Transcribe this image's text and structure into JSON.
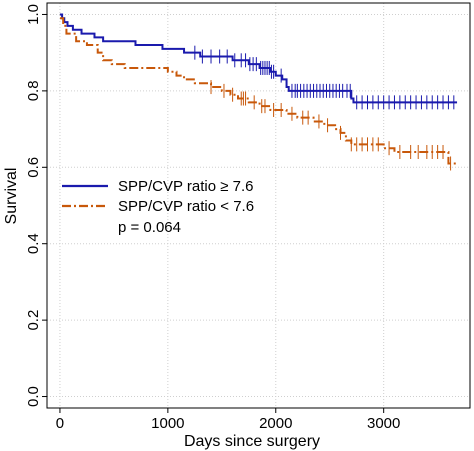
{
  "chart_data": {
    "type": "line",
    "title": "",
    "xlabel": "Days since surgery",
    "ylabel": "Survival",
    "xlim": [
      -120,
      3800
    ],
    "ylim": [
      -0.03,
      1.03
    ],
    "x_ticks": [
      0,
      1000,
      2000,
      3000
    ],
    "x_tick_labels": [
      "0",
      "1000",
      "2000",
      "3000"
    ],
    "y_ticks": [
      0.0,
      0.2,
      0.4,
      0.6,
      0.8,
      1.0
    ],
    "y_tick_labels": [
      "0.0",
      "0.2",
      "0.4",
      "0.6",
      "0.8",
      "1.0"
    ],
    "grid": true,
    "legend_position": "middle-left",
    "annotation": "p = 0.064",
    "series": [
      {
        "name": "SPP/CVP ratio ≥ 7.6",
        "color": "#1a1aad",
        "line_style": "solid",
        "steps": [
          [
            0,
            1.0
          ],
          [
            20,
            0.99
          ],
          [
            40,
            0.98
          ],
          [
            70,
            0.97
          ],
          [
            120,
            0.96
          ],
          [
            200,
            0.95
          ],
          [
            320,
            0.94
          ],
          [
            400,
            0.93
          ],
          [
            700,
            0.92
          ],
          [
            950,
            0.91
          ],
          [
            1150,
            0.9
          ],
          [
            1300,
            0.89
          ],
          [
            1600,
            0.88
          ],
          [
            1750,
            0.87
          ],
          [
            1850,
            0.86
          ],
          [
            1950,
            0.85
          ],
          [
            2000,
            0.84
          ],
          [
            2060,
            0.83
          ],
          [
            2100,
            0.81
          ],
          [
            2120,
            0.8
          ],
          [
            2700,
            0.78
          ],
          [
            2720,
            0.77
          ],
          [
            3680,
            0.77
          ]
        ],
        "censor_x": [
          1250,
          1320,
          1400,
          1480,
          1550,
          1620,
          1680,
          1720,
          1760,
          1790,
          1820,
          1860,
          1880,
          1900,
          1920,
          1940,
          1960,
          1980,
          2050,
          2150,
          2180,
          2200,
          2230,
          2260,
          2290,
          2320,
          2350,
          2380,
          2410,
          2440,
          2470,
          2500,
          2530,
          2560,
          2590,
          2620,
          2660,
          2690,
          2750,
          2800,
          2850,
          2900,
          2950,
          3000,
          3050,
          3100,
          3150,
          3200,
          3250,
          3300,
          3350,
          3400,
          3450,
          3500,
          3550,
          3600,
          3650
        ]
      },
      {
        "name": "SPP/CVP ratio < 7.6",
        "color": "#c8580a",
        "line_style": "dashed",
        "steps": [
          [
            0,
            0.99
          ],
          [
            30,
            0.97
          ],
          [
            60,
            0.95
          ],
          [
            150,
            0.93
          ],
          [
            250,
            0.92
          ],
          [
            350,
            0.9
          ],
          [
            400,
            0.88
          ],
          [
            480,
            0.87
          ],
          [
            600,
            0.86
          ],
          [
            1000,
            0.85
          ],
          [
            1080,
            0.84
          ],
          [
            1150,
            0.83
          ],
          [
            1250,
            0.82
          ],
          [
            1400,
            0.81
          ],
          [
            1500,
            0.8
          ],
          [
            1580,
            0.79
          ],
          [
            1650,
            0.78
          ],
          [
            1750,
            0.77
          ],
          [
            1850,
            0.76
          ],
          [
            1950,
            0.75
          ],
          [
            2100,
            0.74
          ],
          [
            2200,
            0.73
          ],
          [
            2350,
            0.72
          ],
          [
            2450,
            0.71
          ],
          [
            2550,
            0.7
          ],
          [
            2600,
            0.69
          ],
          [
            2650,
            0.67
          ],
          [
            2700,
            0.66
          ],
          [
            3000,
            0.65
          ],
          [
            3100,
            0.64
          ],
          [
            3600,
            0.61
          ],
          [
            3680,
            0.61
          ]
        ],
        "censor_x": [
          1400,
          1520,
          1600,
          1680,
          1700,
          1720,
          1800,
          1870,
          1900,
          1980,
          2050,
          2150,
          2250,
          2300,
          2400,
          2480,
          2600,
          2700,
          2750,
          2800,
          2850,
          2900,
          2950,
          3050,
          3150,
          3250,
          3320,
          3400,
          3450,
          3500,
          3550,
          3620
        ]
      }
    ]
  }
}
